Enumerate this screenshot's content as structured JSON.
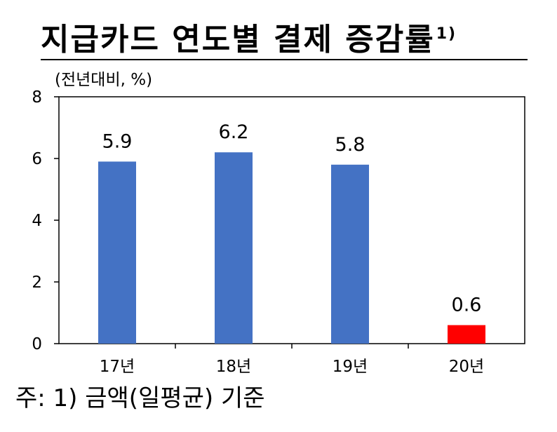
{
  "title": "지급카드 연도별 결제 증감률",
  "title_note": "1)",
  "unit": "(전년대비, %)",
  "footnote": "주: 1) 금액(일평균) 기준",
  "colors": {
    "blue": "#4472C4",
    "red": "#FF0000"
  },
  "chart_data": {
    "type": "bar",
    "categories": [
      "17년",
      "18년",
      "19년",
      "20년"
    ],
    "values": [
      5.9,
      6.2,
      5.8,
      0.6
    ],
    "data_labels": [
      "5.9",
      "6.2",
      "5.8",
      "0.6"
    ],
    "bar_colors": [
      "#4472C4",
      "#4472C4",
      "#4472C4",
      "#FF0000"
    ],
    "ylim": [
      0,
      8
    ],
    "yticks": [
      0,
      2,
      4,
      6,
      8
    ],
    "grid": false,
    "legend": false
  }
}
